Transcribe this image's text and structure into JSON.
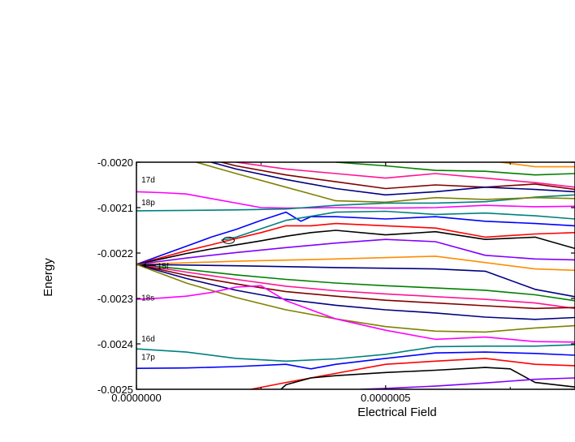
{
  "chart_data": {
    "type": "line",
    "xlabel": "Electrical Field",
    "ylabel": "Energy",
    "xlim": [
      0,
      8.8e-07
    ],
    "ylim": [
      -0.0025,
      -0.002
    ],
    "x_ticks": [
      {
        "value": 0,
        "label": "0.0000000"
      },
      {
        "value": 5e-07,
        "label": "0.0000005"
      }
    ],
    "y_ticks": [
      {
        "value": -0.002,
        "label": "-0.0020"
      },
      {
        "value": -0.0021,
        "label": "-0.0021"
      },
      {
        "value": -0.0022,
        "label": "-0.0022"
      },
      {
        "value": -0.0023,
        "label": "-0.0023"
      },
      {
        "value": -0.0024,
        "label": "-0.0024"
      },
      {
        "value": -0.0025,
        "label": "-0.0025"
      }
    ],
    "grid": false,
    "legend": "none",
    "annotations": [
      {
        "text": "17d",
        "x": 1e-08,
        "y": -0.00205
      },
      {
        "text": "18p",
        "x": 1e-08,
        "y": -0.0021
      },
      {
        "text": "15f",
        "x": 4.2e-08,
        "y": -0.00224,
        "arrow_to": [
          3e-09,
          -0.00222
        ]
      },
      {
        "text": "18s",
        "x": 1e-08,
        "y": -0.00231
      },
      {
        "text": "16d",
        "x": 1e-08,
        "y": -0.0024
      },
      {
        "text": "17p",
        "x": 1e-08,
        "y": -0.00244
      }
    ],
    "circle_marker": {
      "x": 1.85e-07,
      "y": -0.002172
    },
    "series": [
      {
        "color": "#ff00ff",
        "x": [
          0,
          5e-08,
          1e-07,
          1.5e-07,
          2e-07,
          2.5e-07,
          3e-07,
          4e-07,
          5e-07,
          6e-07,
          7e-07,
          8e-07,
          8.8e-07
        ],
        "y": [
          -0.002065,
          -0.002067,
          -0.00207,
          -0.00208,
          -0.00209,
          -0.0021,
          -0.002101,
          -0.0021,
          -0.002101,
          -0.0021,
          -0.002095,
          -0.002098,
          -0.002097
        ]
      },
      {
        "color": "#008080",
        "x": [
          0,
          1e-07,
          2e-07,
          3e-07,
          4e-07,
          5e-07,
          6e-07,
          7e-07,
          8e-07,
          8.8e-07
        ],
        "y": [
          -0.002107,
          -0.002106,
          -0.002105,
          -0.002103,
          -0.002095,
          -0.00209,
          -0.00209,
          -0.002087,
          -0.002077,
          -0.002072
        ]
      },
      {
        "color": "#0000ff",
        "x": [
          0,
          5e-08,
          1e-07,
          1.5e-07,
          2e-07,
          2.5e-07,
          3e-07,
          3.3e-07,
          3.5e-07,
          4e-07,
          5e-07,
          6e-07,
          7e-07,
          8e-07,
          8.8e-07
        ],
        "y": [
          -0.002225,
          -0.002205,
          -0.002185,
          -0.002165,
          -0.002148,
          -0.002128,
          -0.00211,
          -0.00213,
          -0.00212,
          -0.00212,
          -0.002125,
          -0.00212,
          -0.00213,
          -0.002135,
          -0.00214
        ]
      },
      {
        "color": "#ff0000",
        "x": [
          0,
          5e-08,
          1e-07,
          1.5e-07,
          2e-07,
          2.5e-07,
          3e-07,
          3.5e-07,
          4e-07,
          5e-07,
          6e-07,
          7e-07,
          8e-07,
          8.8e-07
        ],
        "y": [
          -0.002225,
          -0.00221,
          -0.002195,
          -0.002182,
          -0.002168,
          -0.002155,
          -0.00214,
          -0.00214,
          -0.002135,
          -0.00214,
          -0.002145,
          -0.002165,
          -0.002158,
          -0.002155
        ]
      },
      {
        "color": "#000000",
        "x": [
          0,
          5e-08,
          1e-07,
          1.5e-07,
          2e-07,
          2.5e-07,
          3e-07,
          3.5e-07,
          4e-07,
          5e-07,
          6e-07,
          7e-07,
          8e-07,
          8.8e-07
        ],
        "y": [
          -0.002225,
          -0.002213,
          -0.002201,
          -0.002191,
          -0.002182,
          -0.002173,
          -0.002163,
          -0.002155,
          -0.00215,
          -0.00216,
          -0.002153,
          -0.00217,
          -0.002165,
          -0.00219
        ]
      },
      {
        "color": "#8000ff",
        "x": [
          0,
          1e-07,
          2e-07,
          3e-07,
          4e-07,
          5e-07,
          6e-07,
          7e-07,
          8e-07,
          8.8e-07
        ],
        "y": [
          -0.002225,
          -0.002211,
          -0.002199,
          -0.002188,
          -0.002178,
          -0.00217,
          -0.002175,
          -0.002205,
          -0.002213,
          -0.002215
        ]
      },
      {
        "color": "#ff8c00",
        "x": [
          0,
          2e-07,
          4e-07,
          6e-07,
          8e-07,
          8.8e-07
        ],
        "y": [
          -0.002225,
          -0.002218,
          -0.002213,
          -0.002207,
          -0.002235,
          -0.002238
        ]
      },
      {
        "color": "#000080",
        "x": [
          0,
          2e-07,
          4e-07,
          6e-07,
          7e-07,
          8e-07,
          8.8e-07
        ],
        "y": [
          -0.002225,
          -0.002228,
          -0.002232,
          -0.002235,
          -0.00224,
          -0.00228,
          -0.002296
        ]
      },
      {
        "color": "#008000",
        "x": [
          0,
          1e-07,
          2e-07,
          3e-07,
          4e-07,
          5e-07,
          6e-07,
          7e-07,
          8e-07,
          8.8e-07
        ],
        "y": [
          -0.002225,
          -0.002236,
          -0.002248,
          -0.002258,
          -0.002266,
          -0.002272,
          -0.002277,
          -0.002282,
          -0.002292,
          -0.002305
        ]
      },
      {
        "color": "#ff1493",
        "x": [
          0,
          1e-07,
          2e-07,
          3e-07,
          4e-07,
          5e-07,
          6e-07,
          7e-07,
          8e-07,
          8.8e-07
        ],
        "y": [
          -0.002225,
          -0.002242,
          -0.002258,
          -0.002273,
          -0.002283,
          -0.00229,
          -0.002296,
          -0.002302,
          -0.00231,
          -0.002322
        ]
      },
      {
        "color": "#800000",
        "x": [
          0,
          1e-07,
          2e-07,
          3e-07,
          4e-07,
          5e-07,
          6e-07,
          7e-07,
          8e-07,
          8.8e-07
        ],
        "y": [
          -0.002225,
          -0.002249,
          -0.002268,
          -0.002285,
          -0.002295,
          -0.002304,
          -0.00231,
          -0.002316,
          -0.002322,
          -0.00232
        ]
      },
      {
        "color": "#000080",
        "x": [
          0,
          1e-07,
          2e-07,
          3e-07,
          4e-07,
          5e-07,
          6e-07,
          7e-07,
          8e-07,
          8.8e-07
        ],
        "y": [
          -0.002225,
          -0.002256,
          -0.002282,
          -0.002302,
          -0.002315,
          -0.002325,
          -0.002332,
          -0.002341,
          -0.002346,
          -0.002342
        ]
      },
      {
        "color": "#808000",
        "x": [
          0,
          1e-07,
          2e-07,
          3e-07,
          4e-07,
          5e-07,
          6e-07,
          7e-07,
          8e-07,
          8.8e-07
        ],
        "y": [
          -0.002225,
          -0.002266,
          -0.002298,
          -0.002325,
          -0.002345,
          -0.002362,
          -0.002372,
          -0.002374,
          -0.002365,
          -0.00236
        ]
      },
      {
        "color": "#ff00ff",
        "x": [
          0,
          5e-08,
          1e-07,
          1.5e-07,
          2e-07,
          2.5e-07,
          3e-07,
          4e-07,
          5e-07,
          6e-07,
          7e-07,
          8e-07,
          8.8e-07
        ],
        "y": [
          -0.002302,
          -0.002299,
          -0.002295,
          -0.002287,
          -0.002275,
          -0.002272,
          -0.002305,
          -0.002345,
          -0.00237,
          -0.00239,
          -0.002385,
          -0.002395,
          -0.002396
        ]
      },
      {
        "color": "#008080",
        "x": [
          0,
          1e-07,
          2e-07,
          3e-07,
          4e-07,
          5e-07,
          6e-07,
          7e-07,
          8e-07,
          8.8e-07
        ],
        "y": [
          -0.002411,
          -0.002418,
          -0.002432,
          -0.002438,
          -0.002433,
          -0.002423,
          -0.002406,
          -0.002405,
          -0.002405,
          -0.002402
        ]
      },
      {
        "color": "#0000ff",
        "x": [
          0,
          1e-07,
          2e-07,
          3e-07,
          3.5e-07,
          4e-07,
          5e-07,
          6e-07,
          7e-07,
          8e-07,
          8.8e-07
        ],
        "y": [
          -0.002454,
          -0.002453,
          -0.00245,
          -0.002445,
          -0.002455,
          -0.002445,
          -0.002432,
          -0.00242,
          -0.002418,
          -0.002421,
          -0.002425
        ]
      },
      {
        "color": "#ff0000",
        "x": [
          2.3e-07,
          3e-07,
          4e-07,
          5e-07,
          6e-07,
          7e-07,
          8e-07,
          8.8e-07
        ],
        "y": [
          -0.0025,
          -0.002485,
          -0.002465,
          -0.002445,
          -0.002438,
          -0.002432,
          -0.002445,
          -0.002448
        ]
      },
      {
        "color": "#000000",
        "x": [
          2.9e-07,
          3e-07,
          3.5e-07,
          4e-07,
          5e-07,
          6e-07,
          7e-07,
          7.5e-07,
          8e-07,
          8.8e-07
        ],
        "y": [
          -0.0025,
          -0.00249,
          -0.002475,
          -0.00247,
          -0.002463,
          -0.002458,
          -0.002452,
          -0.002455,
          -0.002485,
          -0.002495
        ]
      },
      {
        "color": "#8000ff",
        "x": [
          4.5e-07,
          5e-07,
          6e-07,
          7e-07,
          8e-07,
          8.8e-07
        ],
        "y": [
          -0.0025,
          -0.002498,
          -0.002493,
          -0.002486,
          -0.002478,
          -0.002475
        ]
      },
      {
        "color": "#ff8c00",
        "x": [
          7.3e-07,
          8e-07,
          8.8e-07
        ],
        "y": [
          -0.002,
          -0.00201,
          -0.00201
        ]
      },
      {
        "color": "#008000",
        "x": [
          4e-07,
          5e-07,
          6e-07,
          7e-07,
          8e-07,
          8.8e-07
        ],
        "y": [
          -0.002,
          -0.002008,
          -0.002018,
          -0.00202,
          -0.002028,
          -0.002025
        ]
      },
      {
        "color": "#ff1493",
        "x": [
          2e-07,
          3e-07,
          4e-07,
          5e-07,
          6e-07,
          7e-07,
          8e-07,
          8.8e-07
        ],
        "y": [
          -0.002,
          -0.002015,
          -0.002025,
          -0.002035,
          -0.002025,
          -0.002035,
          -0.002045,
          -0.002055
        ]
      },
      {
        "color": "#800000",
        "x": [
          1.7e-07,
          2e-07,
          3e-07,
          4e-07,
          5e-07,
          6e-07,
          7e-07,
          8e-07,
          8.8e-07
        ],
        "y": [
          -0.002,
          -0.002008,
          -0.002028,
          -0.002043,
          -0.002058,
          -0.00205,
          -0.002055,
          -0.002048,
          -0.00206
        ]
      },
      {
        "color": "#000080",
        "x": [
          1.5e-07,
          2e-07,
          3e-07,
          4e-07,
          5e-07,
          6e-07,
          7e-07,
          8e-07,
          8.8e-07
        ],
        "y": [
          -0.002,
          -0.002015,
          -0.002038,
          -0.002058,
          -0.002072,
          -0.002065,
          -0.002055,
          -0.00206,
          -0.002065
        ]
      },
      {
        "color": "#808000",
        "x": [
          1.2e-07,
          2e-07,
          3e-07,
          4e-07,
          5e-07,
          6e-07,
          7e-07,
          8e-07,
          8.8e-07
        ],
        "y": [
          -0.002,
          -0.002025,
          -0.002055,
          -0.002085,
          -0.002088,
          -0.002078,
          -0.002082,
          -0.002078,
          -0.00208
        ]
      },
      {
        "color": "#008080",
        "x": [
          1.7e-07,
          2e-07,
          3e-07,
          4e-07,
          5e-07,
          6e-07,
          7e-07,
          8e-07,
          8.8e-07
        ],
        "y": [
          -0.002172,
          -0.002165,
          -0.002128,
          -0.00211,
          -0.002108,
          -0.002115,
          -0.002112,
          -0.002118,
          -0.002125
        ]
      }
    ]
  }
}
